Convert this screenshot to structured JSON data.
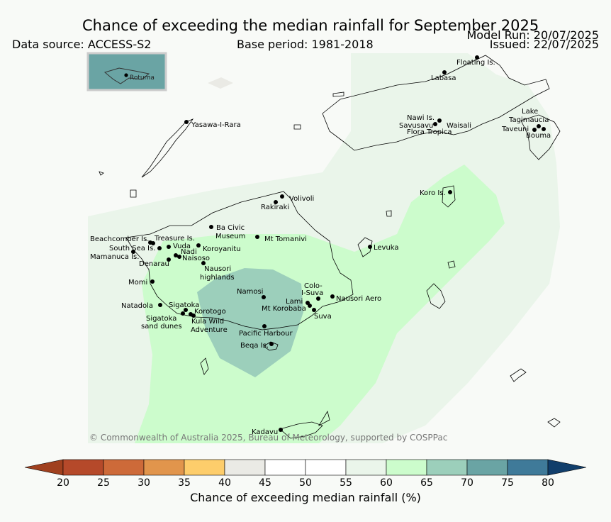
{
  "header": {
    "title": "Chance of exceeding the median rainfall for September 2025",
    "data_source": "Data source: ACCESS-S2",
    "base_period": "Base period: 1981-2018",
    "model_run": "Model Run: 20/07/2025",
    "issued": "Issued: 22/07/2025"
  },
  "inset": {
    "label": "Rotuma"
  },
  "places": [
    {
      "name": "Floating Is."
    },
    {
      "name": "Labasa"
    },
    {
      "name": "Yasawa-I-Rara"
    },
    {
      "name": "Nawi Is."
    },
    {
      "name": "Savusavu"
    },
    {
      "name": "Waisali"
    },
    {
      "name": "Flora Tropica"
    },
    {
      "name": "Lake"
    },
    {
      "name": "Tagimaucia"
    },
    {
      "name": "Taveuni"
    },
    {
      "name": "Bouma"
    },
    {
      "name": "Volivoli"
    },
    {
      "name": "Rakiraki"
    },
    {
      "name": "Koro Is."
    },
    {
      "name": "Ba Civic"
    },
    {
      "name": "Museum"
    },
    {
      "name": "Mt Tomanivi"
    },
    {
      "name": "Beachcomber Is."
    },
    {
      "name": "Treasure Is."
    },
    {
      "name": "South Sea Is."
    },
    {
      "name": "Vuda"
    },
    {
      "name": "Koroyanitu"
    },
    {
      "name": "Nadi"
    },
    {
      "name": "Mamanuca Is."
    },
    {
      "name": "Naisoso"
    },
    {
      "name": "Denarau"
    },
    {
      "name": "Nausori"
    },
    {
      "name": "highlands"
    },
    {
      "name": "Levuka"
    },
    {
      "name": "Momi"
    },
    {
      "name": "Namosi"
    },
    {
      "name": "Colo-"
    },
    {
      "name": "I-Suva"
    },
    {
      "name": "Lami"
    },
    {
      "name": "Nausori Aero"
    },
    {
      "name": "Natadola"
    },
    {
      "name": "Sigatoka"
    },
    {
      "name": "Mt Korobaba"
    },
    {
      "name": "Korotogo"
    },
    {
      "name": "Suva"
    },
    {
      "name": "Sigatoka"
    },
    {
      "name": "sand dunes"
    },
    {
      "name": "Kula Wild"
    },
    {
      "name": "Adventure"
    },
    {
      "name": "Pacific Harbour"
    },
    {
      "name": "Beqa Is."
    },
    {
      "name": "Kadavu"
    }
  ],
  "copyright": "© Commonwealth of Australia 2025, Bureau of Meteorology, supported by COSPPac",
  "colorbar": {
    "title": "Chance of exceeding median rainfall (%)",
    "ticks": [
      "20",
      "25",
      "30",
      "35",
      "40",
      "45",
      "50",
      "55",
      "60",
      "65",
      "70",
      "75",
      "80"
    ],
    "colors": [
      "#a0401e",
      "#b5492a",
      "#cd6a39",
      "#e1954c",
      "#fdcd6b",
      "#eaeae5",
      "#ffffff",
      "#ffffff",
      "#eaf5ea",
      "#ccfccc",
      "#9ccfbb",
      "#6aa4a4",
      "#3f7a99",
      "#113e6b"
    ],
    "extend_low_color": "#a0401e",
    "extend_high_color": "#113e6b"
  },
  "map_colors": {
    "background": "#f8faf7",
    "band_55_60": "#eaf5ea",
    "band_60_65": "#ccfccc",
    "band_65_70": "#9ccfbb",
    "inset_fill": "#6aa4a4",
    "land_outline": "#000000"
  }
}
